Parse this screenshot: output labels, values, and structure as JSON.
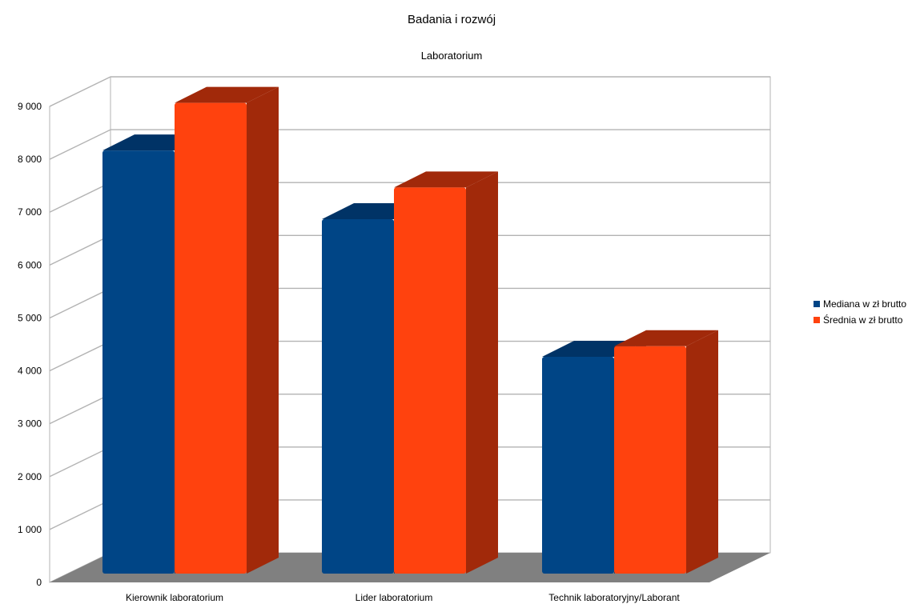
{
  "chart_data": {
    "type": "bar",
    "title": "Badania i rozwój",
    "subtitle": "Laboratorium",
    "categories": [
      "Kierownik laboratorium",
      "Lider laboratorium",
      "Technik laboratoryjny/Laborant"
    ],
    "series": [
      {
        "name": "Mediana w zł brutto",
        "values": [
          8000,
          6700,
          4100
        ],
        "color": "#004586",
        "side_color": "#003366"
      },
      {
        "name": "Średnia w zł brutto",
        "values": [
          8900,
          7300,
          4300
        ],
        "color": "#ff420e",
        "side_color": "#a1290a"
      }
    ],
    "ylim": [
      0,
      9000
    ],
    "ytick_values": [
      0,
      1000,
      2000,
      3000,
      4000,
      5000,
      6000,
      7000,
      8000,
      9000
    ],
    "ytick_labels": [
      "0",
      "1 000",
      "2 000",
      "3 000",
      "4 000",
      "5 000",
      "6 000",
      "7 000",
      "8 000",
      "9 000"
    ],
    "grid": true,
    "legend_position": "right",
    "style": "3d-bar",
    "floor_color": "#808080",
    "grid_color": "#b3b3b3"
  }
}
